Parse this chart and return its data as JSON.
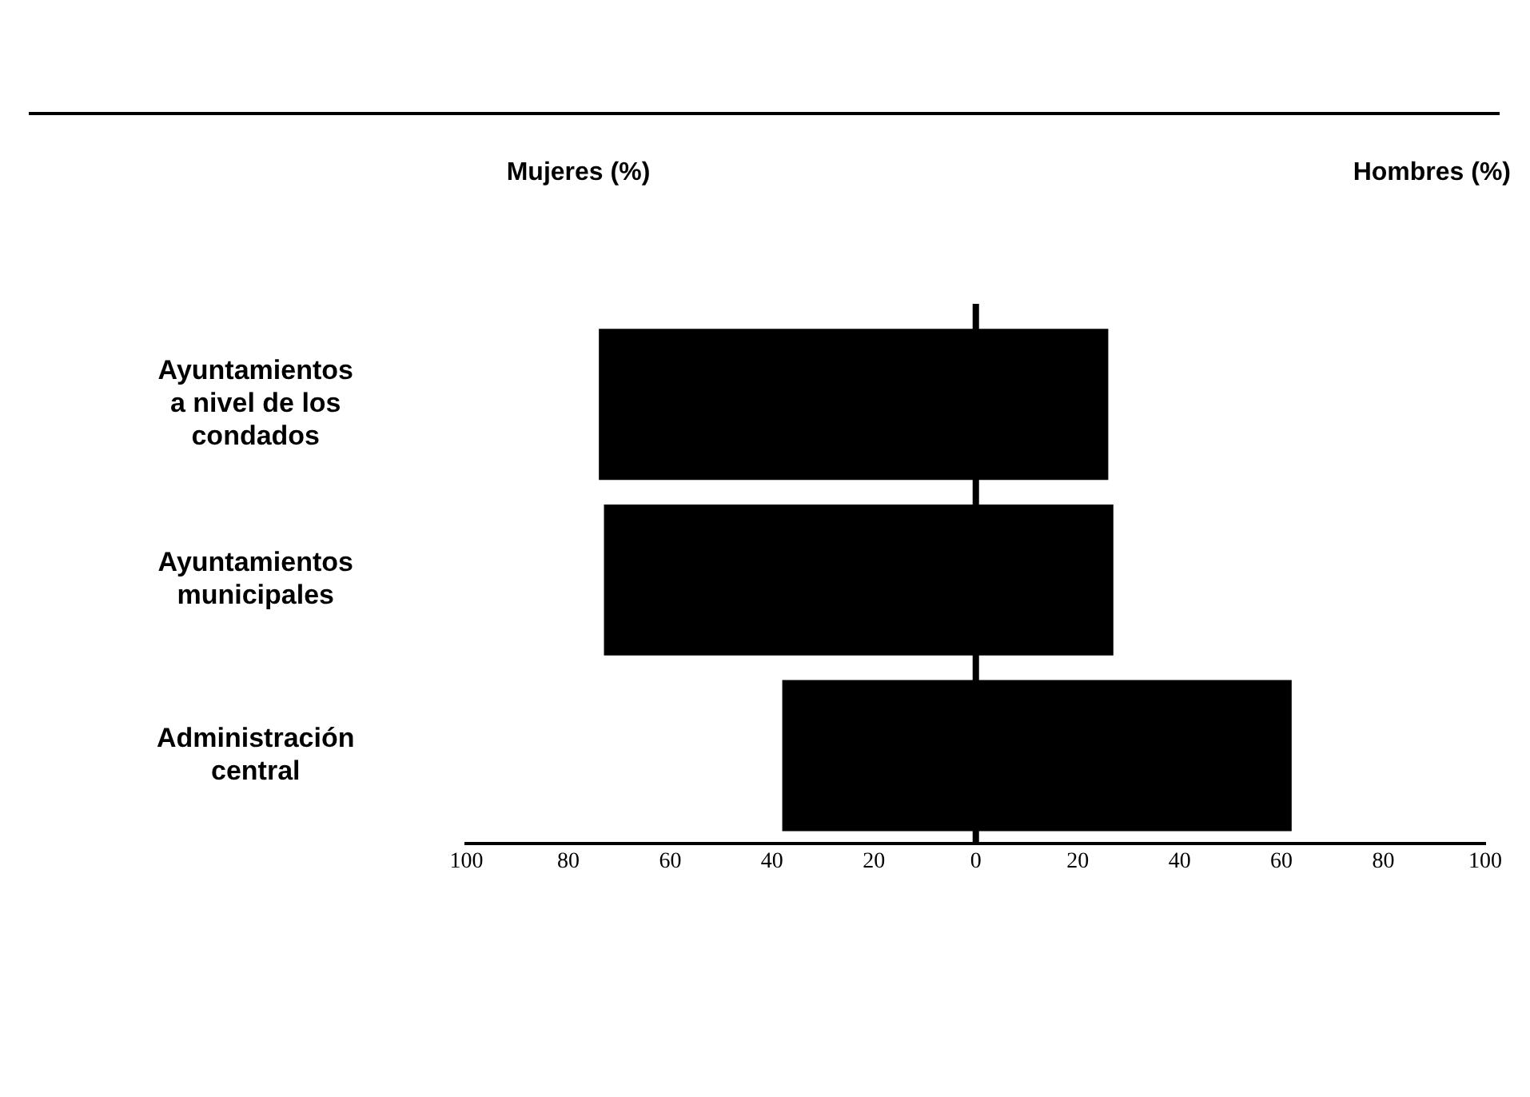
{
  "chart_data": {
    "type": "bar",
    "orientation": "horizontal",
    "stacked": true,
    "categories": [
      "Ayuntamientos a nivel de los condados",
      "Ayuntamientos municipales",
      "Administración central"
    ],
    "series": [
      {
        "color": "#000000",
        "values": [
          -74,
          -73,
          -38
        ]
      },
      {
        "color": "#000000",
        "values": [
          26,
          27,
          62
        ]
      }
    ],
    "annotations": [
      "Mujeres (%)",
      "Hombres (%)"
    ],
    "xlim": [
      -100,
      100
    ],
    "xticks": [
      {
        "value": -100,
        "label": "100"
      },
      {
        "value": -80,
        "label": "80"
      },
      {
        "value": -60,
        "label": "60"
      },
      {
        "value": -40,
        "label": "40"
      },
      {
        "value": -20,
        "label": "20"
      },
      0,
      20,
      40,
      60,
      80,
      100
    ],
    "ref_lines": [
      {
        "axis": "x",
        "value": 0,
        "color": "#000000"
      }
    ],
    "grid": false,
    "legend": false
  }
}
